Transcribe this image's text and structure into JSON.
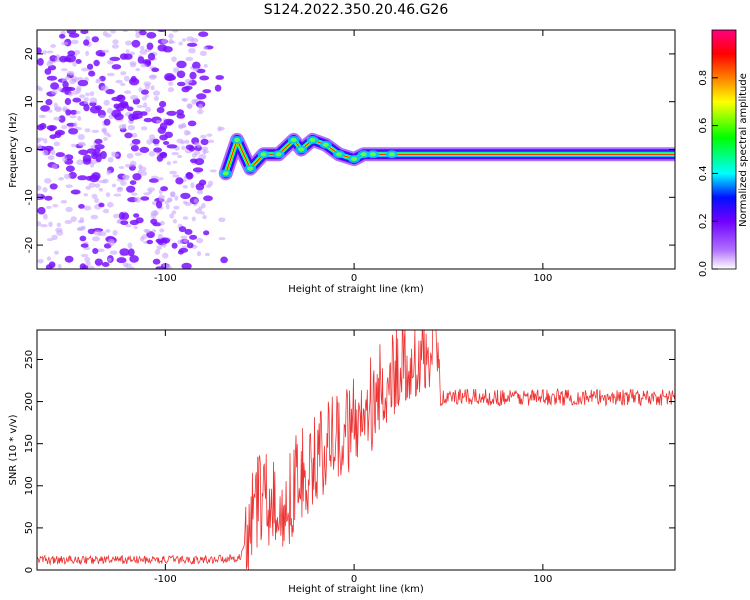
{
  "figure": {
    "title": "S124.2022.350.20.46.G26"
  },
  "chart_data": [
    {
      "type": "heatmap",
      "xlabel": "Height of straight line (km)",
      "ylabel": "Frequency (Hz)",
      "xlim": [
        -168,
        170
      ],
      "ylim": [
        -25,
        25
      ],
      "xticks": [
        -100,
        0,
        100
      ],
      "yticks": [
        -20,
        -10,
        0,
        10,
        20
      ],
      "grid": false,
      "colorbar": {
        "label": "Normalized spectral amplitude",
        "range": [
          0,
          1
        ],
        "ticks": [
          "0.0",
          "0.2",
          "0.4",
          "0.6",
          "0.8"
        ],
        "colormap": [
          "#ffffff",
          "#7a00ff",
          "#0000ff",
          "#00ffff",
          "#00ff00",
          "#ffff00",
          "#ff8000",
          "#ff0000",
          "#ff0080"
        ]
      },
      "noise_region": {
        "x_range": [
          -168,
          -68
        ],
        "y_range": [
          -25,
          25
        ]
      },
      "ridge": [
        {
          "x": -68,
          "y": -5
        },
        {
          "x": -62,
          "y": 2
        },
        {
          "x": -55,
          "y": -4
        },
        {
          "x": -48,
          "y": -1
        },
        {
          "x": -40,
          "y": -1
        },
        {
          "x": -32,
          "y": 2
        },
        {
          "x": -28,
          "y": 0
        },
        {
          "x": -22,
          "y": 2
        },
        {
          "x": -15,
          "y": 1
        },
        {
          "x": -8,
          "y": -1
        },
        {
          "x": 0,
          "y": -2
        },
        {
          "x": 5,
          "y": -1
        },
        {
          "x": 10,
          "y": -1
        },
        {
          "x": 20,
          "y": -1
        },
        {
          "x": 40,
          "y": -1
        },
        {
          "x": 100,
          "y": -1
        },
        {
          "x": 170,
          "y": -1
        }
      ]
    },
    {
      "type": "line",
      "xlabel": "Height of straight line (km)",
      "ylabel": "SNR (10 * v/v)",
      "xlim": [
        -168,
        170
      ],
      "ylim": [
        0,
        285
      ],
      "xticks": [
        -100,
        0,
        100
      ],
      "yticks": [
        0,
        50,
        100,
        150,
        200,
        250
      ],
      "grid": false,
      "series": [
        {
          "color": "#ee3333",
          "points": [
            {
              "x": -168,
              "y": 12
            },
            {
              "x": -140,
              "y": 12
            },
            {
              "x": -110,
              "y": 12
            },
            {
              "x": -80,
              "y": 12
            },
            {
              "x": -60,
              "y": 15
            },
            {
              "x": -55,
              "y": 60
            },
            {
              "x": -50,
              "y": 90
            },
            {
              "x": -45,
              "y": 80
            },
            {
              "x": -40,
              "y": 70
            },
            {
              "x": -35,
              "y": 80
            },
            {
              "x": -30,
              "y": 110
            },
            {
              "x": -25,
              "y": 120
            },
            {
              "x": -20,
              "y": 130
            },
            {
              "x": -15,
              "y": 140
            },
            {
              "x": -10,
              "y": 160
            },
            {
              "x": -5,
              "y": 170
            },
            {
              "x": 0,
              "y": 180
            },
            {
              "x": 5,
              "y": 190
            },
            {
              "x": 10,
              "y": 200
            },
            {
              "x": 15,
              "y": 220
            },
            {
              "x": 20,
              "y": 230
            },
            {
              "x": 25,
              "y": 245
            },
            {
              "x": 30,
              "y": 255
            },
            {
              "x": 35,
              "y": 265
            },
            {
              "x": 40,
              "y": 270
            },
            {
              "x": 45,
              "y": 272
            },
            {
              "x": 46,
              "y": 205
            },
            {
              "x": 60,
              "y": 205
            },
            {
              "x": 80,
              "y": 205
            },
            {
              "x": 100,
              "y": 205
            },
            {
              "x": 120,
              "y": 205
            },
            {
              "x": 140,
              "y": 205
            },
            {
              "x": 170,
              "y": 205
            }
          ]
        }
      ]
    }
  ]
}
